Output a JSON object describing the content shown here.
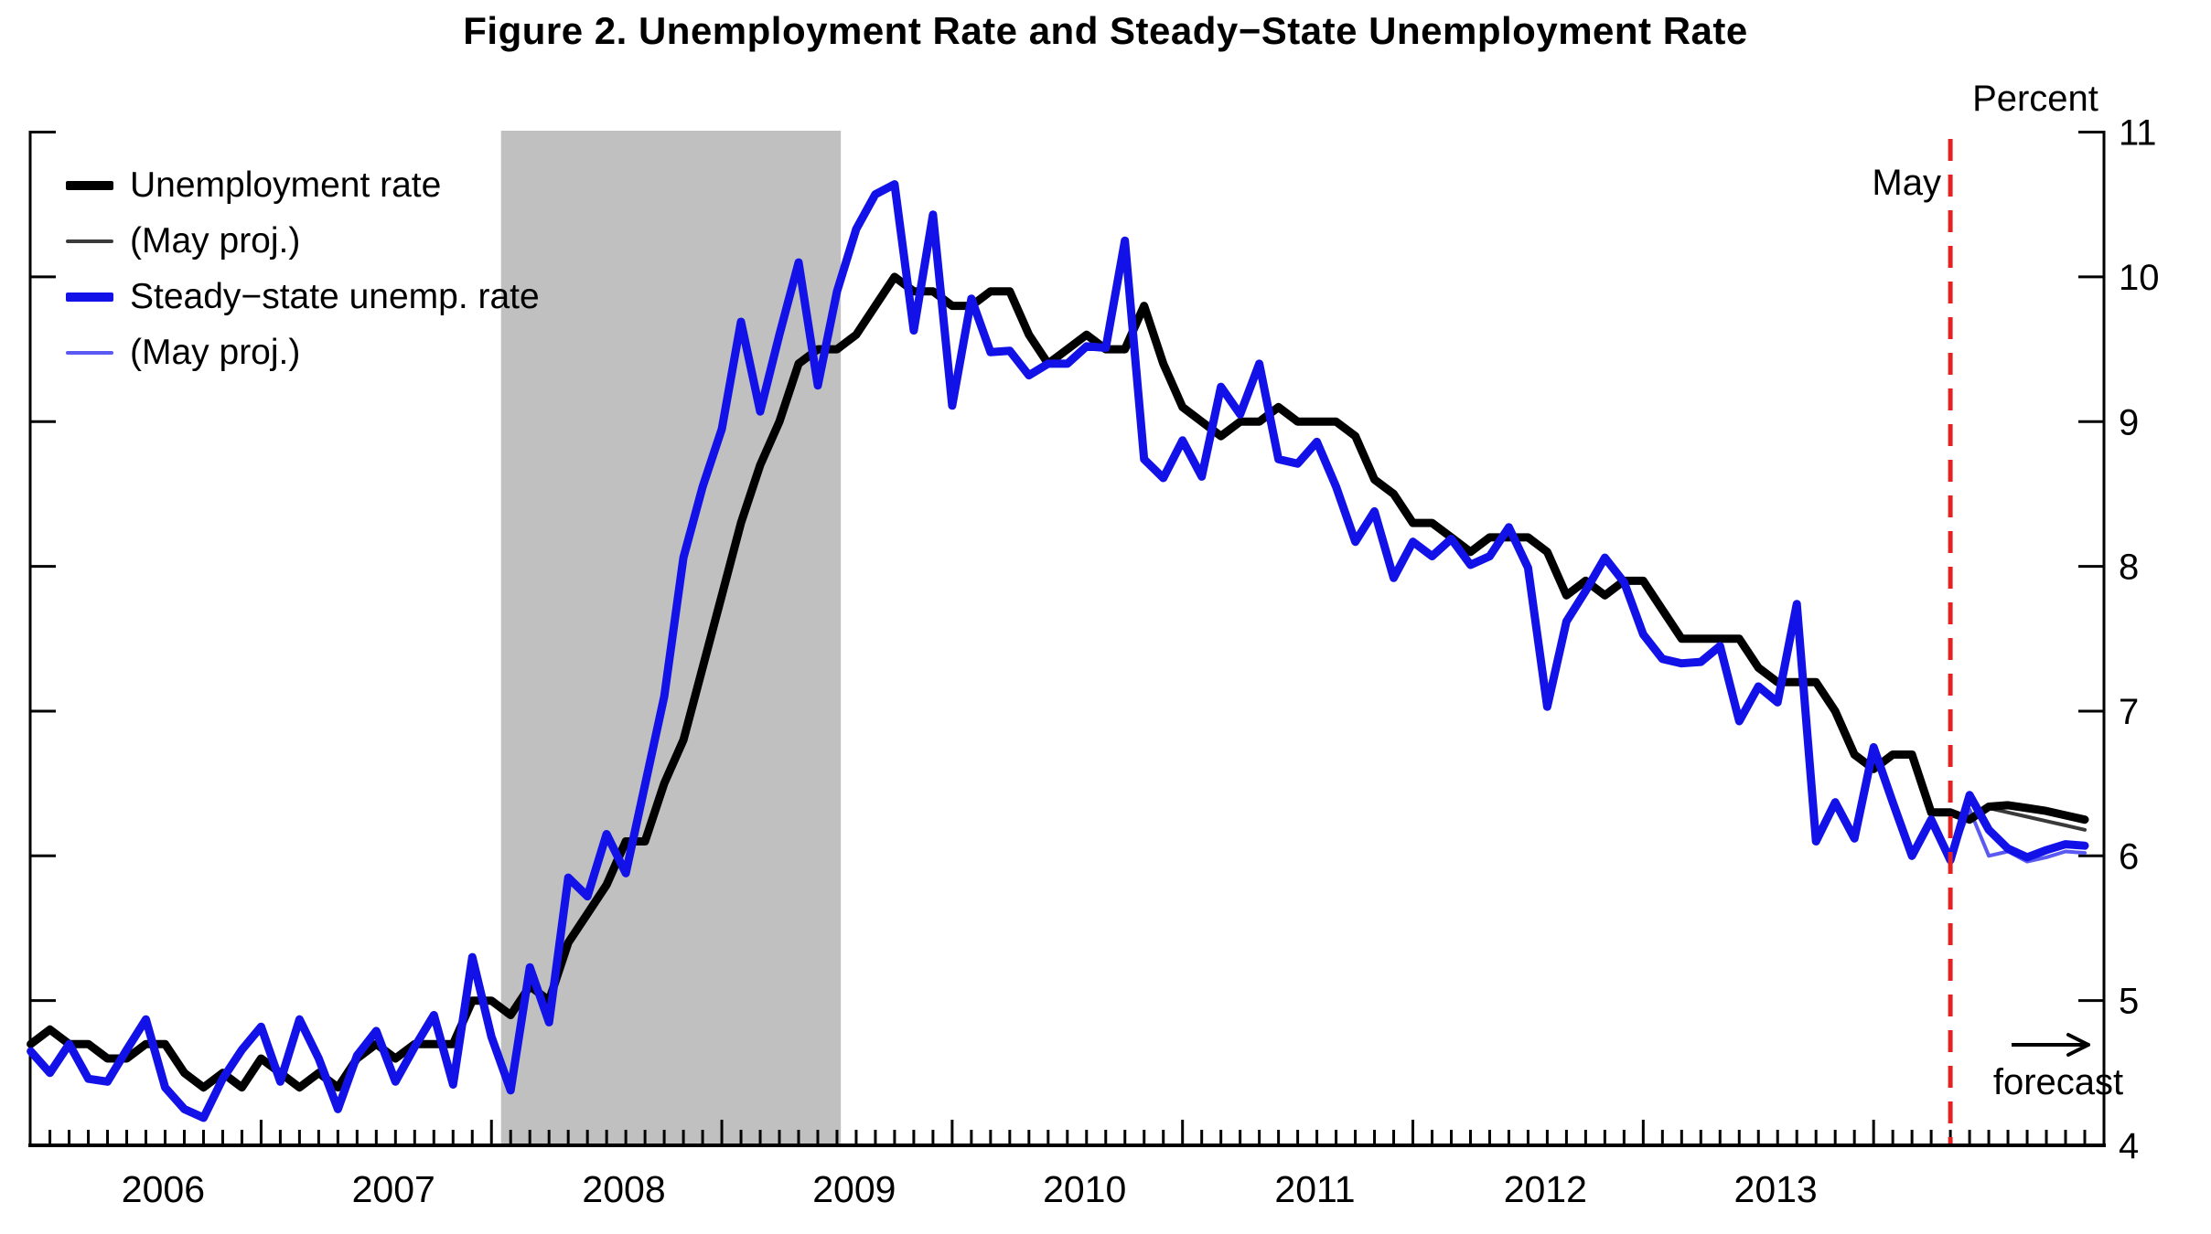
{
  "chart_data": {
    "type": "line",
    "title": "Figure 2. Unemployment Rate and Steady−State Unemployment Rate",
    "ylabel": "Percent",
    "xlabel": "",
    "ylim": [
      4,
      11
    ],
    "yticks": [
      4,
      5,
      6,
      7,
      8,
      9,
      10,
      11
    ],
    "x_axis": {
      "start": "2006-01",
      "end": "2014-12",
      "months_total": 108,
      "minor_tick": "monthly",
      "major_tick": "january",
      "year_labels": [
        "2006",
        "2007",
        "2008",
        "2009",
        "2010",
        "2011",
        "2012",
        "2013"
      ]
    },
    "recession_band": {
      "start_month_index": 24.5,
      "end_month_index": 42.2,
      "color": "#c0c0c0",
      "meaning": "recession shading Dec 2007 - Jun 2009"
    },
    "forecast_line": {
      "label": "May",
      "x_month_index": 100,
      "color": "#e42320"
    },
    "forecast_annotation": {
      "text": "forecast",
      "icon": "right-arrow"
    },
    "series": [
      {
        "id": "ur",
        "name": "Unemployment rate",
        "color": "#000000",
        "width": 9,
        "start_index": 0,
        "values": [
          4.7,
          4.8,
          4.7,
          4.7,
          4.6,
          4.6,
          4.7,
          4.7,
          4.5,
          4.4,
          4.5,
          4.4,
          4.6,
          4.5,
          4.4,
          4.5,
          4.4,
          4.6,
          4.7,
          4.6,
          4.7,
          4.7,
          4.7,
          5.0,
          5.0,
          4.9,
          5.1,
          5.0,
          5.4,
          5.6,
          5.8,
          6.1,
          6.1,
          6.5,
          6.8,
          7.3,
          7.8,
          8.3,
          8.7,
          9.0,
          9.4,
          9.5,
          9.5,
          9.6,
          9.8,
          10.0,
          9.9,
          9.9,
          9.8,
          9.8,
          9.9,
          9.9,
          9.6,
          9.4,
          9.5,
          9.6,
          9.5,
          9.5,
          9.8,
          9.4,
          9.1,
          9.0,
          8.9,
          9.0,
          9.0,
          9.1,
          9.0,
          9.0,
          9.0,
          8.9,
          8.6,
          8.5,
          8.3,
          8.3,
          8.2,
          8.1,
          8.2,
          8.2,
          8.2,
          8.1,
          7.8,
          7.9,
          7.8,
          7.9,
          7.9,
          7.7,
          7.5,
          7.5,
          7.5,
          7.5,
          7.3,
          7.2,
          7.2,
          7.2,
          7.0,
          6.7,
          6.6,
          6.7,
          6.7,
          6.3,
          6.3,
          6.25,
          6.34,
          6.35,
          6.33,
          6.31,
          6.28,
          6.25
        ]
      },
      {
        "id": "ur_may_proj",
        "name": "(May proj.)",
        "color": "#3a3a3a",
        "width": 4,
        "start_index": 100,
        "values": [
          6.3,
          6.25,
          6.33,
          6.3,
          6.27,
          6.24,
          6.21,
          6.18
        ]
      },
      {
        "id": "ssur",
        "name": "Steady−state unemp. rate",
        "color": "#1212e8",
        "width": 9,
        "start_index": 0,
        "values": [
          4.65,
          4.5,
          4.7,
          4.46,
          4.44,
          4.66,
          4.87,
          4.4,
          4.25,
          4.19,
          4.46,
          4.66,
          4.82,
          4.44,
          4.87,
          4.6,
          4.25,
          4.62,
          4.79,
          4.44,
          4.68,
          4.9,
          4.42,
          5.3,
          4.75,
          4.38,
          5.23,
          4.85,
          5.85,
          5.72,
          6.15,
          5.88,
          6.49,
          7.1,
          8.06,
          8.55,
          8.95,
          9.69,
          9.07,
          9.6,
          10.1,
          9.25,
          9.9,
          10.33,
          10.57,
          10.64,
          9.63,
          10.43,
          9.11,
          9.85,
          9.48,
          9.49,
          9.32,
          9.4,
          9.4,
          9.52,
          9.51,
          10.25,
          8.74,
          8.61,
          8.87,
          8.62,
          9.24,
          9.05,
          9.4,
          8.74,
          8.71,
          8.86,
          8.55,
          8.17,
          8.38,
          7.92,
          8.17,
          8.07,
          8.19,
          8.01,
          8.07,
          8.27,
          7.99,
          7.03,
          7.62,
          7.83,
          8.06,
          7.89,
          7.53,
          7.36,
          7.33,
          7.34,
          7.45,
          6.93,
          7.17,
          7.06,
          7.74,
          6.1,
          6.37,
          6.12,
          6.75,
          6.37,
          6.0,
          6.25,
          5.97,
          6.42,
          6.18,
          6.05,
          5.99,
          6.04,
          6.08,
          6.07
        ]
      },
      {
        "id": "ssur_may_proj",
        "name": "(May proj.)",
        "color": "#5a5af2",
        "width": 4,
        "start_index": 100,
        "values": [
          5.97,
          6.32,
          6.0,
          6.03,
          5.96,
          5.99,
          6.03,
          6.02
        ]
      }
    ]
  }
}
